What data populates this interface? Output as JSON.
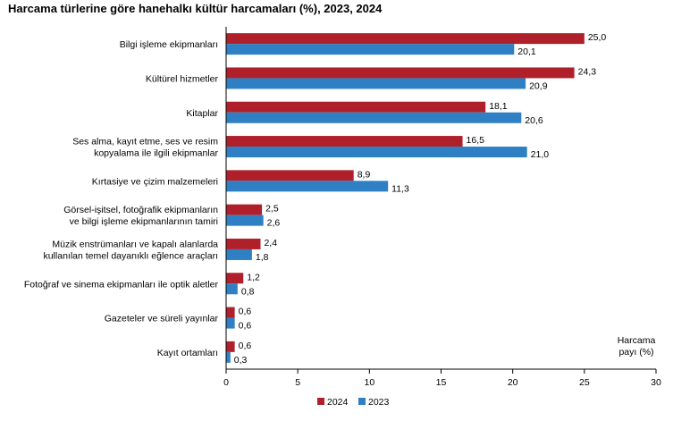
{
  "title": "Harcama türlerine göre hanehalkı kültür harcamaları (%), 2023, 2024",
  "chart_data": {
    "type": "bar",
    "orientation": "horizontal",
    "categories": [
      [
        "Bilgi işleme ekipmanları"
      ],
      [
        "Kültürel hizmetler"
      ],
      [
        "Kitaplar"
      ],
      [
        "Ses alma, kayıt etme, ses ve resim",
        "kopyalama ile ilgili ekipmanlar"
      ],
      [
        "Kırtasiye ve çizim malzemeleri"
      ],
      [
        "Görsel-işitsel, fotoğrafik ekipmanların",
        "ve bilgi işleme ekipmanlarının tamiri"
      ],
      [
        "Müzik enstrümanları ve kapalı alanlarda",
        "kullanılan temel dayanıklı eğlence araçları"
      ],
      [
        "Fotoğraf ve sinema ekipmanları ile optik aletler"
      ],
      [
        "Gazeteler ve süreli yayınlar"
      ],
      [
        "Kayıt ortamları"
      ]
    ],
    "series": [
      {
        "name": "2024",
        "color": "#b0202a",
        "values": [
          25.0,
          24.3,
          18.1,
          16.5,
          8.9,
          2.5,
          2.4,
          1.2,
          0.6,
          0.6
        ],
        "labels": [
          "25,0",
          "24,3",
          "18,1",
          "16,5",
          "8,9",
          "2,5",
          "2,4",
          "1,2",
          "0,6",
          "0,6"
        ]
      },
      {
        "name": "2023",
        "color": "#2e7fc4",
        "values": [
          20.1,
          20.9,
          20.6,
          21.0,
          11.3,
          2.6,
          1.8,
          0.8,
          0.6,
          0.3
        ],
        "labels": [
          "20,1",
          "20,9",
          "20,6",
          "21,0",
          "11,3",
          "2,6",
          "1,8",
          "0,8",
          "0,6",
          "0,3"
        ]
      }
    ],
    "xlim": [
      0,
      30
    ],
    "xticks": [
      "0",
      "5",
      "10",
      "15",
      "20",
      "25",
      "30"
    ],
    "axis_title_lines": [
      "Harcama",
      "payı (%)"
    ],
    "legend_position": "bottom",
    "grid": false
  }
}
